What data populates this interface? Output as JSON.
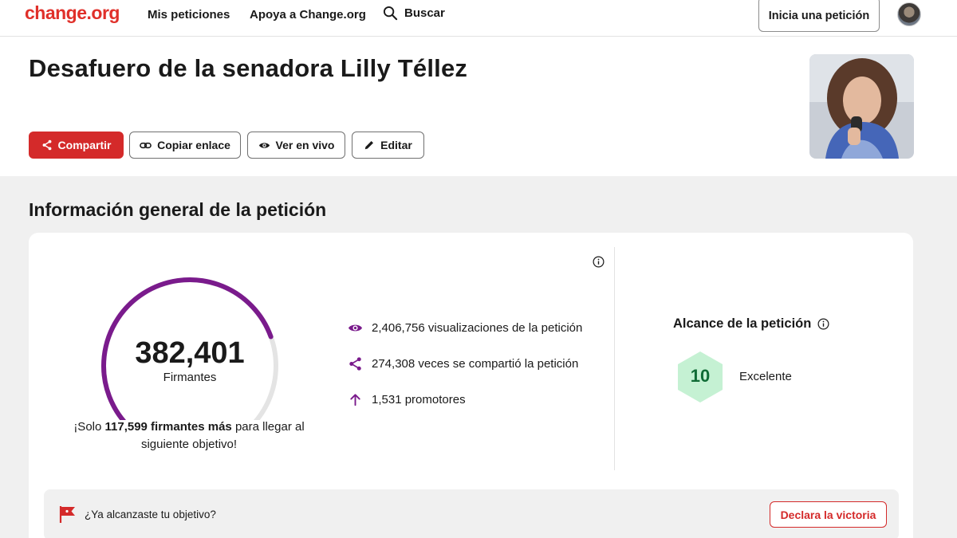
{
  "header": {
    "logo": "change.org",
    "nav": [
      "Mis peticiones",
      "Apoya a Change.org"
    ],
    "search_label": "Buscar",
    "start_petition": "Inicia una petición"
  },
  "petition": {
    "title": "Desafuero de la senadora Lilly Téllez",
    "actions": {
      "share": "Compartir",
      "copy_link": "Copiar enlace",
      "view_live": "Ver en vivo",
      "edit": "Editar"
    }
  },
  "overview": {
    "section_title": "Información general de la petición",
    "signatures": "382,401",
    "signatures_label": "Firmantes",
    "gauge_progress": 0.76,
    "goal_prefix": "¡Solo ",
    "goal_remaining": "117,599 firmantes más",
    "goal_suffix": " para llegar al siguiente objetivo!",
    "stats": [
      {
        "icon": "eye-icon",
        "text": "2,406,756 visualizaciones de la petición"
      },
      {
        "icon": "share-icon",
        "text": "274,308 veces se compartió la petición"
      },
      {
        "icon": "arrow-up-icon",
        "text": "1,531 promotores"
      }
    ],
    "reach": {
      "title": "Alcance de la petición",
      "score": "10",
      "label": "Excelente"
    },
    "victory": {
      "question": "¿Ya alcanzaste tu objetivo?",
      "button": "Declara la victoria"
    }
  },
  "colors": {
    "brand": "#e0302a",
    "gauge": "#7a1b8c",
    "hex_fill": "#c5f1d3",
    "hex_text": "#0f6b35"
  }
}
